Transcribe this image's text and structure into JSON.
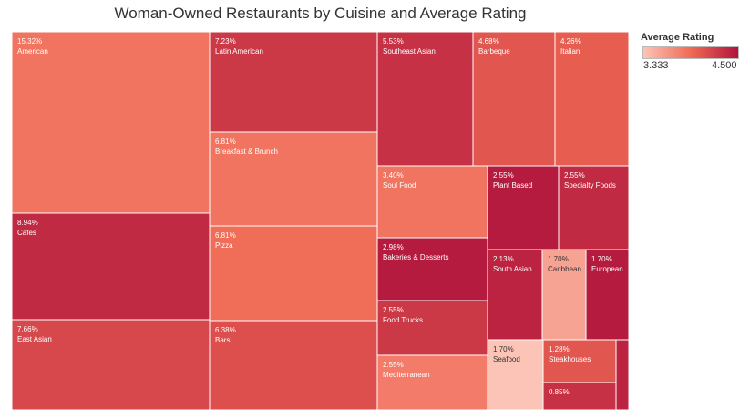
{
  "chart_data": {
    "type": "treemap",
    "title": "Woman-Owned Restaurants by Cuisine and Average Rating",
    "size_measure": "percent of restaurants",
    "color_measure": "Average Rating",
    "color_range": [
      3.333,
      4.5
    ],
    "color_stops": [
      "#fbc4b7",
      "#b0143c"
    ],
    "legend": {
      "title": "Average Rating",
      "min_label": "3.333",
      "max_label": "4.500"
    },
    "tiles": [
      {
        "cuisine": "American",
        "pct_label": "15.32%",
        "rating": 3.85
      },
      {
        "cuisine": "Cafes",
        "pct_label": "8.94%",
        "rating": 4.35
      },
      {
        "cuisine": "East Asian",
        "pct_label": "7.66%",
        "rating": 4.15
      },
      {
        "cuisine": "Latin American",
        "pct_label": "7.23%",
        "rating": 4.25
      },
      {
        "cuisine": "Breakfast & Brunch",
        "pct_label": "6.81%",
        "rating": 3.85
      },
      {
        "cuisine": "Pizza",
        "pct_label": "6.81%",
        "rating": 3.9
      },
      {
        "cuisine": "Bars",
        "pct_label": "6.38%",
        "rating": 4.1
      },
      {
        "cuisine": "Southeast Asian",
        "pct_label": "5.53%",
        "rating": 4.3
      },
      {
        "cuisine": "Barbeque",
        "pct_label": "4.68%",
        "rating": 4.05
      },
      {
        "cuisine": "Italian",
        "pct_label": "4.26%",
        "rating": 4.0
      },
      {
        "cuisine": "Soul Food",
        "pct_label": "3.40%",
        "rating": 3.85
      },
      {
        "cuisine": "Plant Based",
        "pct_label": "2.55%",
        "rating": 4.45
      },
      {
        "cuisine": "Specialty Foods",
        "pct_label": "2.55%",
        "rating": 4.35
      },
      {
        "cuisine": "Bakeries & Desserts",
        "pct_label": "2.98%",
        "rating": 4.45
      },
      {
        "cuisine": "South Asian",
        "pct_label": "2.13%",
        "rating": 4.4
      },
      {
        "cuisine": "Caribbean",
        "pct_label": "1.70%",
        "rating": 3.55
      },
      {
        "cuisine": "European",
        "pct_label": "1.70%",
        "rating": 4.45
      },
      {
        "cuisine": "Food Trucks",
        "pct_label": "2.55%",
        "rating": 4.25
      },
      {
        "cuisine": "Seafood",
        "pct_label": "1.70%",
        "rating": 3.33
      },
      {
        "cuisine": "Steakhouses",
        "pct_label": "1.28%",
        "rating": 4.05
      },
      {
        "cuisine": "Mediterranean",
        "pct_label": "2.55%",
        "rating": 3.8
      },
      {
        "cuisine": "",
        "pct_label": "0.85%",
        "rating": 4.3
      },
      {
        "cuisine": "",
        "pct_label": "",
        "rating": 4.4
      }
    ]
  }
}
